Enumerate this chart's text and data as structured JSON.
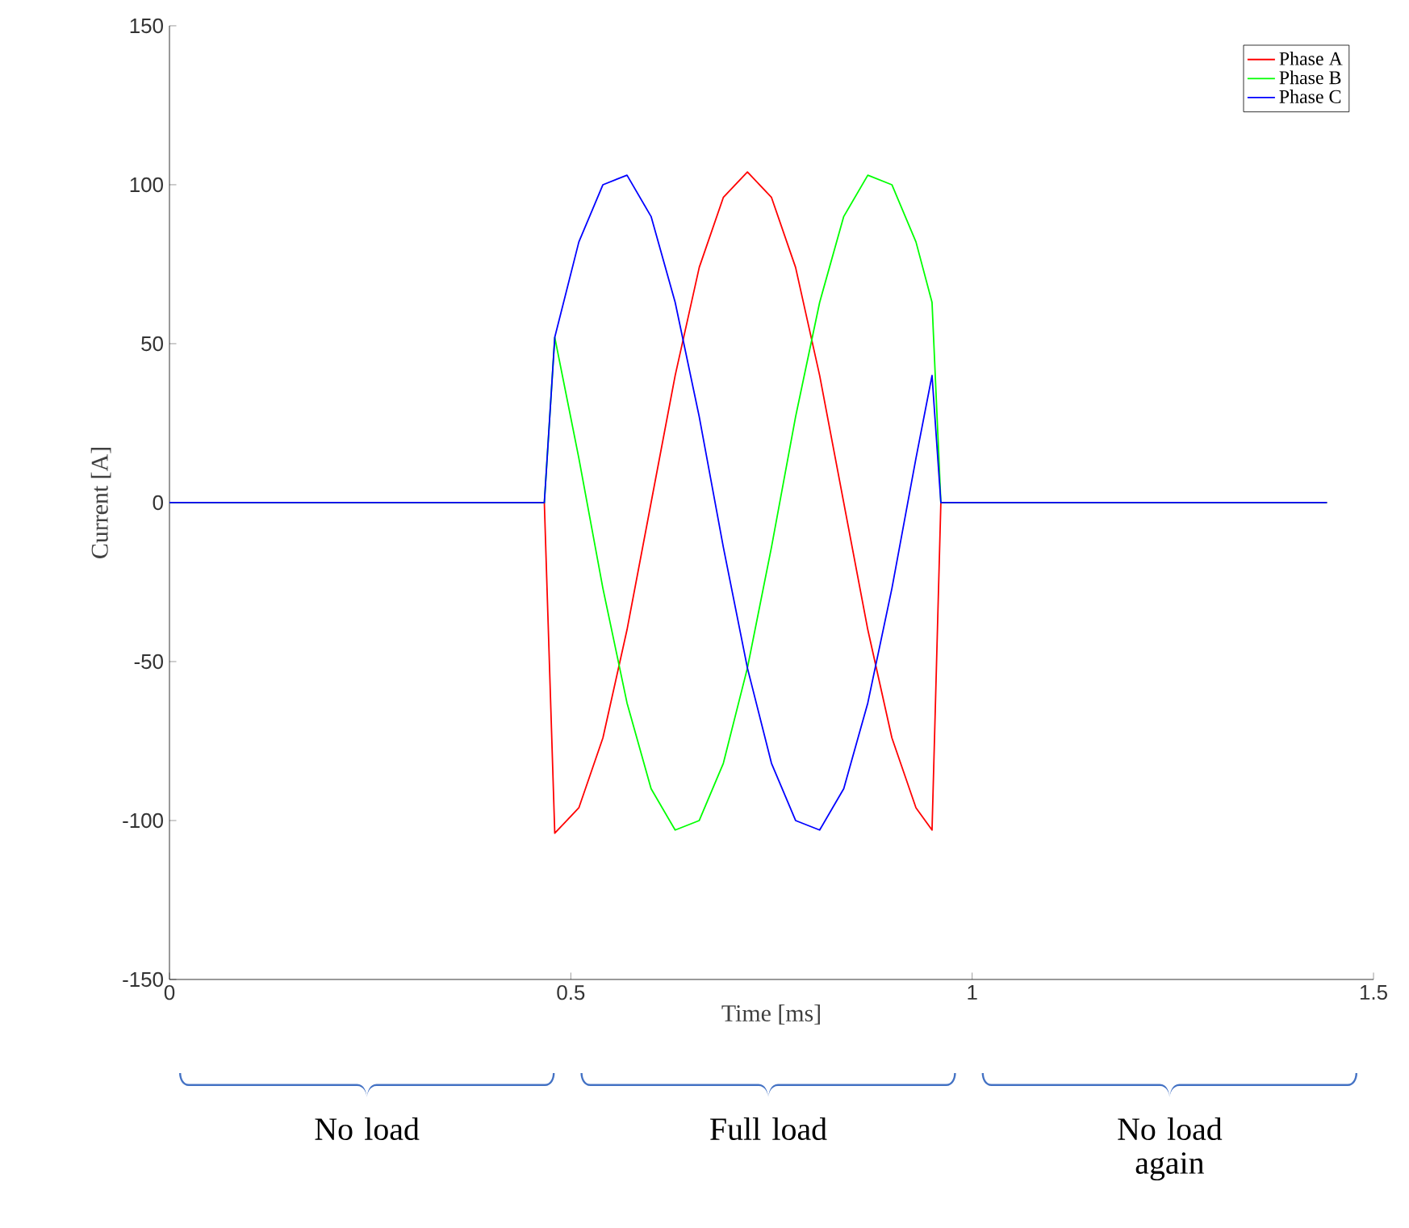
{
  "chart_data": {
    "type": "line",
    "xlabel": "Time [ms]",
    "ylabel": "Current [A]",
    "x": [
      0,
      0.467,
      0.48,
      0.51,
      0.54,
      0.57,
      0.6,
      0.63,
      0.66,
      0.69,
      0.72,
      0.75,
      0.78,
      0.81,
      0.84,
      0.87,
      0.9,
      0.93,
      0.95,
      0.961,
      1.442
    ],
    "series": [
      {
        "name": "Phase A",
        "color": "#ff0000",
        "values": [
          0,
          0,
          -104,
          -96,
          -74,
          -40,
          0,
          40,
          74,
          96,
          104,
          96,
          74,
          40,
          0,
          -40,
          -74,
          -96,
          -103,
          0,
          0
        ]
      },
      {
        "name": "Phase B",
        "color": "#00ff00",
        "values": [
          0,
          0,
          52,
          14,
          -27,
          -63,
          -90,
          -103,
          -100,
          -82,
          -52,
          -14,
          27,
          63,
          90,
          103,
          100,
          82,
          63,
          0,
          0
        ]
      },
      {
        "name": "Phase C",
        "color": "#0000ff",
        "values": [
          0,
          0,
          52,
          82,
          100,
          103,
          90,
          63,
          27,
          -14,
          -52,
          -82,
          -100,
          -103,
          -90,
          -63,
          -27,
          14,
          40,
          0,
          0
        ]
      }
    ],
    "xlim": [
      0,
      1.5
    ],
    "xticks": [
      0,
      0.5,
      1,
      1.5
    ],
    "ylim": [
      -150,
      150
    ],
    "yticks": [
      -150,
      -100,
      -50,
      0,
      50,
      100,
      150
    ],
    "legend": "top right",
    "grid": false,
    "marker": "none",
    "line_style": "solid",
    "annotations": [
      "No load",
      "Full load",
      "No load again"
    ]
  }
}
